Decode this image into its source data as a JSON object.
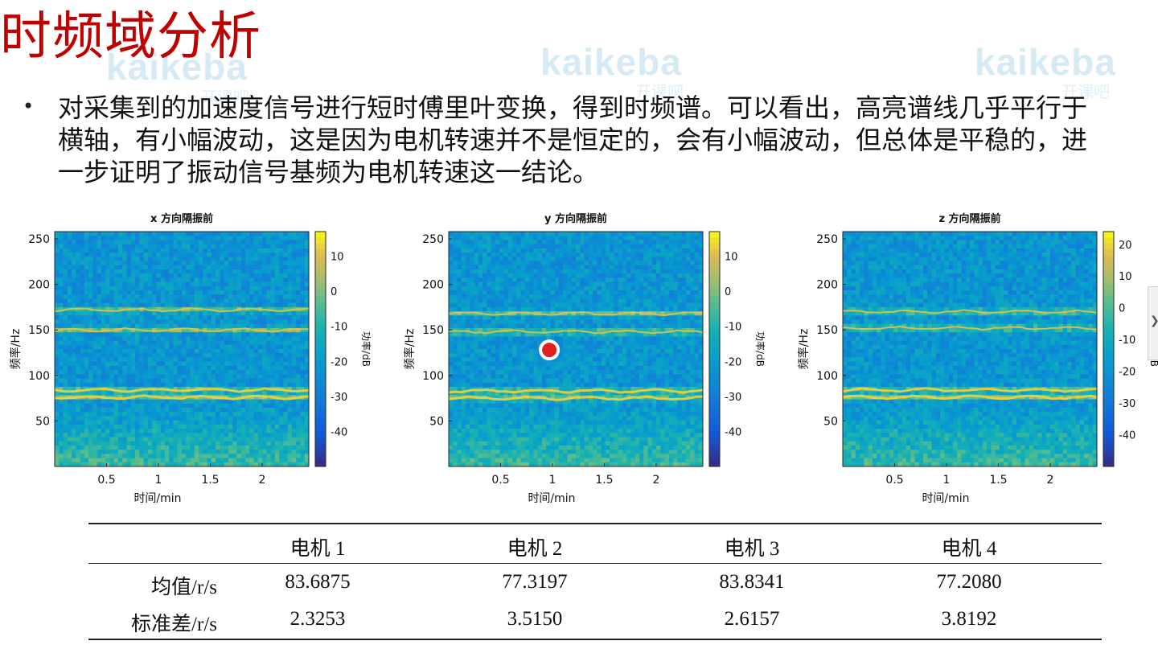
{
  "slide": {
    "title": "时频域分析",
    "bullet": "对采集到的加速度信号进行短时傅里叶变换，得到时频谱。可以看出，高亮谱线几乎平行于横轴，有小幅波动，这是因为电机转速并不是恒定的，会有小幅波动，但总体是平稳的，进一步证明了振动信号基频为电机转速这一结论。"
  },
  "watermark": {
    "logo": "kaikeba",
    "sub": "开课吧"
  },
  "colors": {
    "title": "#c00000",
    "marker": "#e02020"
  },
  "chart_data": [
    {
      "type": "heatmap",
      "title": "x 方向隔振前",
      "xlabel": "时间/min",
      "ylabel": "频率/Hz",
      "colorbar_label": "功率/dB",
      "xticks": [
        0.5,
        1,
        1.5,
        2
      ],
      "xlim": [
        0,
        2.45
      ],
      "yticks": [
        50,
        100,
        150,
        200,
        250
      ],
      "ylim": [
        0,
        258
      ],
      "cticks": [
        10,
        0,
        -10,
        -20,
        -30,
        -40
      ],
      "clim": [
        -50,
        17
      ],
      "lines_hz": [
        84,
        76,
        172,
        150
      ]
    },
    {
      "type": "heatmap",
      "title": "y 方向隔振前",
      "xlabel": "时间/min",
      "ylabel": "频率/Hz",
      "colorbar_label": "功率/dB",
      "xticks": [
        0.5,
        1,
        1.5,
        2
      ],
      "xlim": [
        0,
        2.45
      ],
      "yticks": [
        50,
        100,
        150,
        200,
        250
      ],
      "ylim": [
        0,
        258
      ],
      "cticks": [
        10,
        0,
        -10,
        -20,
        -30,
        -40
      ],
      "clim": [
        -50,
        17
      ],
      "lines_hz": [
        83,
        75,
        168,
        148
      ]
    },
    {
      "type": "heatmap",
      "title": "z 方向隔振前",
      "xlabel": "时间/min",
      "ylabel": "频率/Hz",
      "colorbar_label": "功率/dB",
      "xticks": [
        0.5,
        1,
        1.5,
        2
      ],
      "xlim": [
        0,
        2.45
      ],
      "yticks": [
        50,
        100,
        150,
        200,
        250
      ],
      "ylim": [
        0,
        258
      ],
      "cticks": [
        20,
        10,
        0,
        -10,
        -20,
        -30,
        -40
      ],
      "clim": [
        -50,
        24
      ],
      "lines_hz": [
        84,
        76,
        170,
        152
      ]
    }
  ],
  "table": {
    "headers": [
      "",
      "电机 1",
      "电机 2",
      "电机 3",
      "电机 4"
    ],
    "rows": [
      {
        "label": "均值/r/s",
        "values": [
          "83.6875",
          "77.3197",
          "83.8341",
          "77.2080"
        ]
      },
      {
        "label": "标准差/r/s",
        "values": [
          "2.3253",
          "3.5150",
          "2.6157",
          "3.8192"
        ]
      }
    ]
  }
}
